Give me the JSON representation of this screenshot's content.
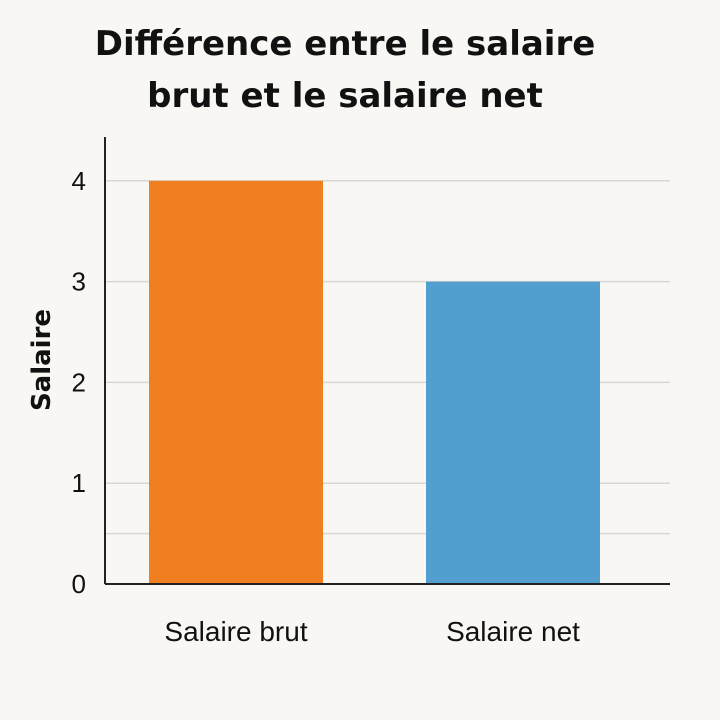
{
  "chart_data": {
    "type": "bar",
    "title_lines": [
      "Différence entre le salaire",
      "brut et le salaire net"
    ],
    "xlabel": "",
    "ylabel": "Salaire",
    "categories": [
      "Salaire brut",
      "Salaire net"
    ],
    "values": [
      4,
      3
    ],
    "bar_colors": [
      "#f07f22",
      "#529fcf"
    ],
    "yticks": [
      0,
      1,
      2,
      3,
      4
    ],
    "ylim": [
      0,
      5
    ],
    "grid": true,
    "legend": "none"
  },
  "colors": {
    "background": "#f9f7f4",
    "gridline": "#d9d7d3",
    "axis": "#222222"
  }
}
